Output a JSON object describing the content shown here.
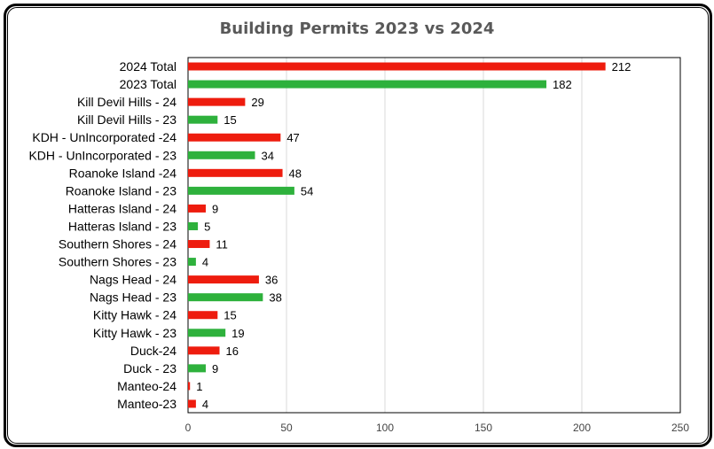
{
  "chart_data": {
    "type": "bar",
    "orientation": "horizontal",
    "title": "Building Permits 2023 vs 2024",
    "xlabel": "",
    "ylabel": "",
    "xlim": [
      0,
      250
    ],
    "x_ticks": [
      "0",
      "50",
      "100",
      "150",
      "200",
      "250"
    ],
    "grid": true,
    "legend": "none",
    "categories": [
      "2024 Total",
      "2023 Total",
      "Kill Devil Hills - 24",
      "Kill Devil Hills - 23",
      "KDH - UnIncorporated -24",
      "KDH - UnIncorporated - 23",
      "Roanoke Island -24",
      "Roanoke Island - 23",
      "Hatteras Island - 24",
      "Hatteras Island - 23",
      "Southern Shores - 24",
      "Southern Shores - 23",
      "Nags Head - 24",
      "Nags Head - 23",
      "Kitty Hawk - 24",
      "Kitty Hawk - 23",
      "Duck-24",
      "Duck - 23",
      "Manteo-24",
      "Manteo-23"
    ],
    "values": [
      212,
      182,
      29,
      15,
      47,
      34,
      48,
      54,
      9,
      5,
      11,
      4,
      36,
      38,
      15,
      19,
      16,
      9,
      1,
      4
    ],
    "bar_colors": [
      "#ee1c0e",
      "#2eb13c",
      "#ee1c0e",
      "#2eb13c",
      "#ee1c0e",
      "#2eb13c",
      "#ee1c0e",
      "#2eb13c",
      "#ee1c0e",
      "#2eb13c",
      "#ee1c0e",
      "#2eb13c",
      "#ee1c0e",
      "#2eb13c",
      "#ee1c0e",
      "#2eb13c",
      "#ee1c0e",
      "#2eb13c",
      "#ee1c0e",
      "#ee1c0e"
    ]
  }
}
